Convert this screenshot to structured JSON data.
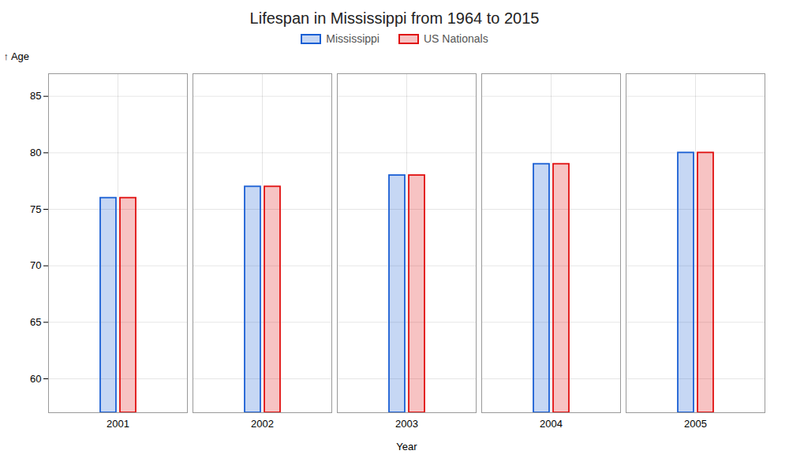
{
  "chart_data": {
    "type": "bar",
    "title": "Lifespan in Mississippi from 1964 to 2015",
    "categories": [
      "2001",
      "2002",
      "2003",
      "2004",
      "2005"
    ],
    "series": [
      {
        "name": "Mississippi",
        "color": "#1a5fd4",
        "values": [
          76,
          77,
          78,
          79,
          80
        ]
      },
      {
        "name": "US Nationals",
        "color": "#e01010",
        "values": [
          76,
          77,
          78,
          79,
          80
        ]
      }
    ],
    "xlabel": "Year",
    "ylabel": "Age",
    "ylim": [
      57,
      87
    ],
    "yticks": [
      60,
      65,
      70,
      75,
      80,
      85
    ],
    "grid": true,
    "legend": "top"
  }
}
